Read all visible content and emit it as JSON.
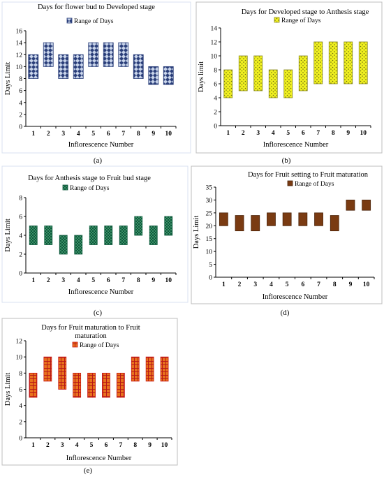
{
  "chart_data": [
    {
      "type": "bar",
      "title": "Days for flower bud to Developed stage",
      "caption": "(a)",
      "xlabel": "Inflorescence Number",
      "ylabel": "Days Limit",
      "legend": "Range of Days",
      "legend_placement": "top",
      "categories": [
        "1",
        "2",
        "3",
        "4",
        "5",
        "6",
        "7",
        "8",
        "9",
        "10"
      ],
      "low": [
        8,
        10,
        8,
        8,
        10,
        10,
        10,
        8,
        7,
        7
      ],
      "high": [
        12,
        14,
        12,
        12,
        14,
        14,
        14,
        12,
        10,
        10
      ],
      "ylim": [
        0,
        16
      ],
      "yticks": [
        "0",
        "2",
        "4",
        "6",
        "8",
        "10",
        "12",
        "14",
        "16"
      ],
      "grid": false,
      "fill": "#2b3f7a",
      "pattern": "#c8d4ea"
    },
    {
      "type": "bar",
      "title": "Days for Developed stage to Anthesis stage",
      "caption": "(b)",
      "xlabel": "Inflorescence Number",
      "ylabel": "Days  limit",
      "legend": "Range of Days",
      "legend_placement": "top",
      "categories": [
        "1",
        "2",
        "3",
        "4",
        "5",
        "6",
        "7",
        "8",
        "9",
        "10"
      ],
      "low": [
        4,
        5,
        5,
        4,
        4,
        5,
        6,
        6,
        6,
        6
      ],
      "high": [
        8,
        10,
        10,
        8,
        8,
        10,
        12,
        12,
        12,
        12
      ],
      "ylim": [
        0,
        14
      ],
      "yticks": [
        "0",
        "2",
        "4",
        "6",
        "8",
        "10",
        "12",
        "14"
      ],
      "grid": false,
      "fill": "#f0f020",
      "pattern": "#6a6a10"
    },
    {
      "type": "bar",
      "title": "Days for Anthesis stage to  Fruit bud stage",
      "caption": "(c)",
      "xlabel": "Inflorescence Number",
      "ylabel": "Days Limit",
      "legend": "Range of Days",
      "legend_placement": "top",
      "categories": [
        "1",
        "2",
        "3",
        "4",
        "5",
        "6",
        "7",
        "8",
        "9",
        "10"
      ],
      "low": [
        3,
        3,
        2,
        2,
        3,
        3,
        3,
        4,
        3,
        4
      ],
      "high": [
        5,
        5,
        4,
        4,
        5,
        5,
        5,
        6,
        5,
        6
      ],
      "ylim": [
        0,
        8
      ],
      "yticks": [
        "0",
        "2",
        "4",
        "6",
        "8"
      ],
      "grid": false,
      "fill": "#0f5a3c",
      "pattern": "#7ee0a8"
    },
    {
      "type": "bar",
      "title": "Days for Fruit setting to Fruit maturation",
      "caption": "(d)",
      "xlabel": "Inflorescence Number",
      "ylabel": "Days Limit",
      "legend": "Range of Days",
      "legend_placement": "top",
      "categories": [
        "1",
        "2",
        "3",
        "4",
        "5",
        "6",
        "7",
        "8",
        "9",
        "10"
      ],
      "low": [
        20,
        18,
        18,
        20,
        20,
        20,
        20,
        18,
        26,
        26
      ],
      "high": [
        25,
        24,
        24,
        25,
        25,
        25,
        25,
        24,
        30,
        30
      ],
      "ylim": [
        0,
        35
      ],
      "yticks": [
        "0",
        "5",
        "10",
        "15",
        "20",
        "25",
        "30",
        "35"
      ],
      "grid": false,
      "fill": "#7a3b12",
      "pattern": "none"
    },
    {
      "type": "bar",
      "title": "Days for Fruit maturation  to Fruit",
      "title2": "maturation",
      "caption": "(e)",
      "xlabel": "Inflorescence Number",
      "ylabel": "Days Limit",
      "legend": "Range of Days",
      "legend_placement": "top",
      "categories": [
        "1",
        "2",
        "3",
        "4",
        "5",
        "6",
        "7",
        "8",
        "9",
        "10"
      ],
      "low": [
        5,
        7,
        6,
        5,
        5,
        5,
        5,
        7,
        7,
        7
      ],
      "high": [
        8,
        10,
        10,
        8,
        8,
        8,
        8,
        10,
        10,
        10
      ],
      "ylim": [
        0,
        12
      ],
      "yticks": [
        "0",
        "2",
        "4",
        "6",
        "8",
        "10",
        "12"
      ],
      "grid": false,
      "fill": "#e8721c",
      "pattern": "#b81818"
    }
  ]
}
